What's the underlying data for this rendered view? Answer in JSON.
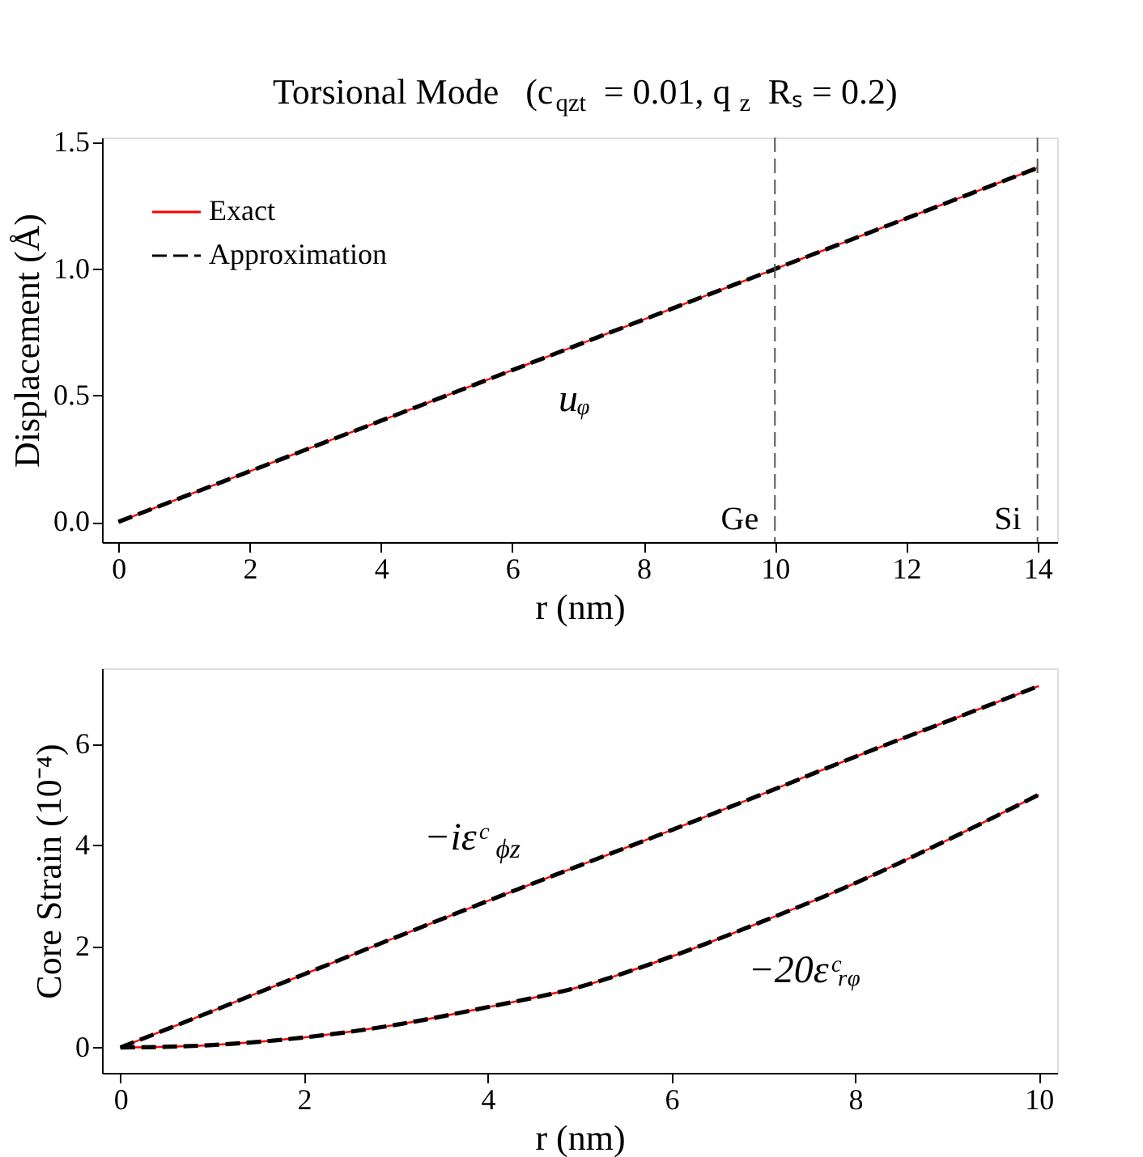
{
  "chart_data": [
    {
      "type": "line",
      "title": "Torsional Mode   (c$_{qzt}$ = 0.01, q$_{z}$Rₛ = 0.2)",
      "xlabel": "r (nm)",
      "ylabel": "Displacement (Å)",
      "x": [
        0,
        1,
        2,
        3,
        4,
        5,
        6,
        7,
        8,
        9,
        10,
        11,
        12,
        13,
        14
      ],
      "series": [
        {
          "name": "Exact",
          "color": "#ff0000",
          "line_style": "solid",
          "values": [
            0,
            0.1,
            0.2,
            0.3,
            0.4,
            0.5,
            0.6,
            0.7,
            0.8,
            0.9,
            1.0,
            1.1,
            1.2,
            1.3,
            1.4
          ]
        },
        {
          "name": "Approximation",
          "color": "#000000",
          "line_style": "dashed",
          "values": [
            0,
            0.1,
            0.2,
            0.3,
            0.4,
            0.5,
            0.6,
            0.7,
            0.8,
            0.9,
            1.0,
            1.1,
            1.2,
            1.3,
            1.4
          ]
        }
      ],
      "xlim": [
        -0.25,
        14.3
      ],
      "xticks": [
        0,
        2,
        4,
        6,
        8,
        10,
        12,
        14
      ],
      "ylim": [
        -0.08,
        1.52
      ],
      "yticks": [
        {
          "value": 0,
          "label": "0.0"
        },
        {
          "value": 0.5,
          "label": "0.5"
        },
        {
          "value": 1,
          "label": "1.0"
        },
        {
          "value": 1.5,
          "label": "1.5"
        }
      ],
      "ref_lines": [
        {
          "axis": "x",
          "value": 10,
          "label": "Ge",
          "color": "#555555",
          "line_style": "dashed"
        },
        {
          "axis": "x",
          "value": 14,
          "label": "Si",
          "color": "#555555",
          "line_style": "dashed"
        }
      ],
      "annotations": [
        "uᵩ"
      ],
      "legend": "top left",
      "grid": false
    },
    {
      "type": "line",
      "xlabel": "r (nm)",
      "ylabel": "Core Strain (10⁻⁴)",
      "x": [
        0,
        1,
        2,
        3,
        4,
        5,
        6,
        7,
        8,
        9,
        10
      ],
      "series": [
        {
          "color": "#ff0000",
          "line_style": "solid",
          "values": [
            0,
            0.72,
            1.45,
            2.18,
            2.9,
            3.6,
            4.3,
            5.02,
            5.75,
            6.45,
            7.15
          ]
        },
        {
          "color": "#000000",
          "line_style": "dashed",
          "values": [
            0,
            0.72,
            1.45,
            2.18,
            2.9,
            3.6,
            4.3,
            5.02,
            5.75,
            6.45,
            7.15
          ]
        },
        {
          "color": "#ff0000",
          "line_style": "solid",
          "values": [
            0,
            0.05,
            0.2,
            0.45,
            0.8,
            1.2,
            1.8,
            2.5,
            3.25,
            4.1,
            5.0
          ]
        },
        {
          "color": "#000000",
          "line_style": "dashed",
          "values": [
            0,
            0.05,
            0.2,
            0.45,
            0.8,
            1.2,
            1.8,
            2.5,
            3.25,
            4.1,
            5.0
          ]
        }
      ],
      "xlim": [
        -0.2,
        10.2
      ],
      "xticks": [
        0,
        2,
        4,
        6,
        8,
        10
      ],
      "ylim": [
        -0.5,
        7.5
      ],
      "yticks": [
        0,
        2,
        4,
        6
      ],
      "annotations": [
        "−iεᶜ$_{ϕz}$",
        "−20εᶜᵣᵩ"
      ],
      "grid": false
    }
  ]
}
